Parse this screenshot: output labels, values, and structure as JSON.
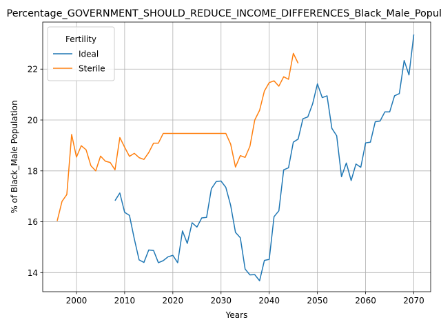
{
  "chart_data": {
    "type": "line",
    "title": "Percentage_GOVERNMENT_SHOULD_REDUCE_INCOME_DIFFERENCES_Black_Male_Population",
    "xlabel": "Years",
    "ylabel": "% of Black_Male Population",
    "xlim": [
      1993,
      2073.5
    ],
    "ylim": [
      13.25,
      23.85
    ],
    "xticks": [
      2000,
      2010,
      2020,
      2030,
      2040,
      2050,
      2060,
      2070
    ],
    "yticks": [
      14,
      16,
      18,
      20,
      22
    ],
    "grid": true,
    "legend": {
      "title": "Fertility",
      "placement": "upper-left"
    },
    "series": [
      {
        "name": "Ideal",
        "color": "#1f77b4",
        "x": [
          2008,
          2009,
          2010,
          2011,
          2012,
          2013,
          2014,
          2015,
          2016,
          2017,
          2018,
          2019,
          2020,
          2021,
          2022,
          2023,
          2024,
          2025,
          2026,
          2027,
          2028,
          2029,
          2030,
          2031,
          2032,
          2033,
          2034,
          2035,
          2036,
          2037,
          2038,
          2039,
          2040,
          2041,
          2042,
          2043,
          2044,
          2045,
          2046,
          2047,
          2048,
          2049,
          2050,
          2051,
          2052,
          2053,
          2054,
          2055,
          2056,
          2057,
          2058,
          2059,
          2060,
          2061,
          2062,
          2063,
          2064,
          2065,
          2066,
          2067,
          2068,
          2069,
          2070
        ],
        "y": [
          16.83,
          17.13,
          16.37,
          16.25,
          15.33,
          14.5,
          14.4,
          14.89,
          14.87,
          14.39,
          14.47,
          14.62,
          14.68,
          14.39,
          15.64,
          15.15,
          15.96,
          15.79,
          16.15,
          16.17,
          17.3,
          17.58,
          17.6,
          17.35,
          16.64,
          15.58,
          15.37,
          14.14,
          13.91,
          13.92,
          13.68,
          14.48,
          14.52,
          16.2,
          16.43,
          18.04,
          18.12,
          19.13,
          19.25,
          20.05,
          20.12,
          20.63,
          21.42,
          20.88,
          20.95,
          19.67,
          19.38,
          17.77,
          18.31,
          17.62,
          18.27,
          18.14,
          19.1,
          19.13,
          19.93,
          19.96,
          20.32,
          20.32,
          20.95,
          21.04,
          22.34,
          21.77,
          23.36
        ]
      },
      {
        "name": "Sterile",
        "color": "#ff7f0e",
        "x": [
          1996,
          1997,
          1998,
          1999,
          2000,
          2001,
          2002,
          2003,
          2004,
          2005,
          2006,
          2007,
          2008,
          2009,
          2010,
          2011,
          2012,
          2013,
          2014,
          2015,
          2016,
          2017,
          2018,
          2019,
          2020,
          2021,
          2022,
          2023,
          2024,
          2025,
          2026,
          2027,
          2028,
          2029,
          2030,
          2031,
          2032,
          2033,
          2034,
          2035,
          2036,
          2037,
          2038,
          2039,
          2040,
          2041,
          2042,
          2043,
          2044,
          2045,
          2046
        ],
        "y": [
          16.03,
          16.8,
          17.07,
          19.43,
          18.54,
          18.99,
          18.83,
          18.2,
          18.0,
          18.58,
          18.38,
          18.33,
          18.04,
          19.31,
          18.93,
          18.57,
          18.69,
          18.52,
          18.45,
          18.72,
          19.09,
          19.09,
          19.47,
          19.47,
          19.47,
          19.47,
          19.47,
          19.47,
          19.47,
          19.47,
          19.47,
          19.47,
          19.47,
          19.47,
          19.47,
          19.47,
          19.05,
          18.15,
          18.6,
          18.53,
          18.97,
          20.0,
          20.38,
          21.14,
          21.47,
          21.54,
          21.33,
          21.7,
          21.6,
          22.62,
          22.23
        ]
      }
    ]
  }
}
